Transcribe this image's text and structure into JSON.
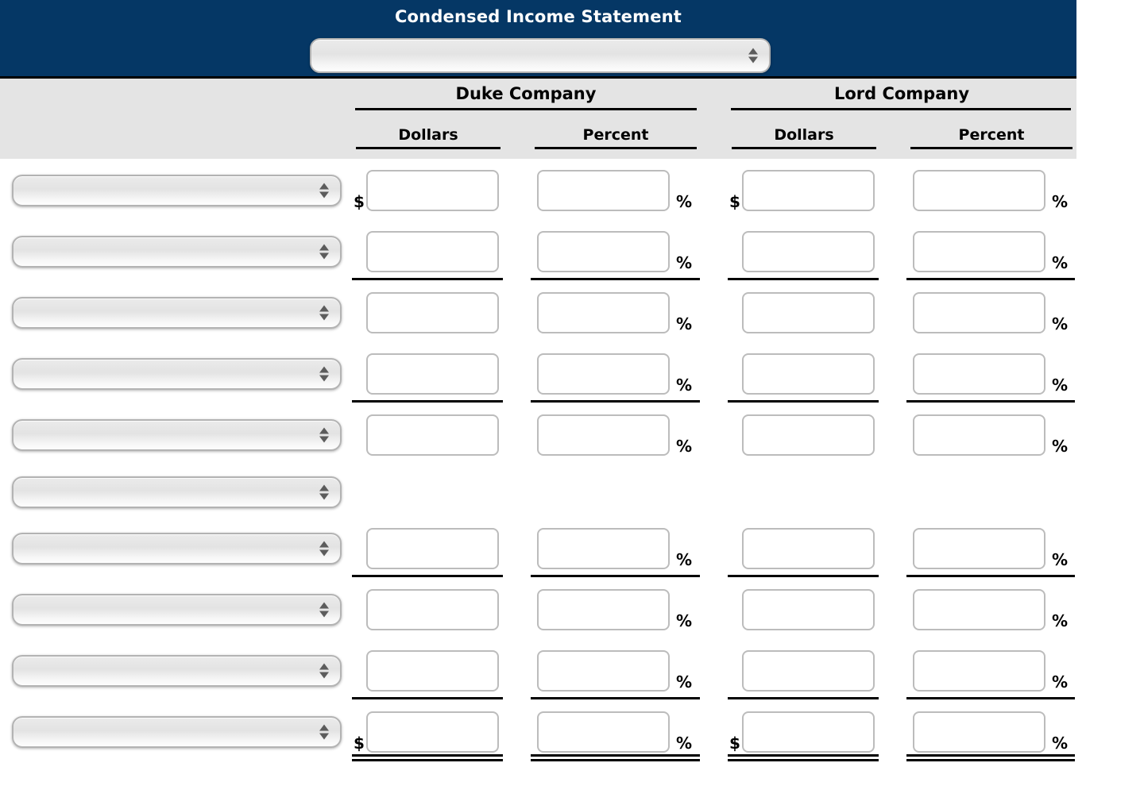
{
  "title": "Condensed Income Statement",
  "statement_select": {
    "value": ""
  },
  "symbols": {
    "dollar": "$",
    "percent": "%"
  },
  "table": {
    "companies": [
      {
        "name": "Duke Company",
        "columns": [
          "Dollars",
          "Percent"
        ]
      },
      {
        "name": "Lord Company",
        "columns": [
          "Dollars",
          "Percent"
        ]
      }
    ]
  },
  "rows": [
    {
      "id": 1,
      "account_select": "",
      "has_inputs": true,
      "show_dollar_sign": true,
      "rule_after": "none",
      "inputs": {
        "duke_dollars": "",
        "duke_percent": "",
        "lord_dollars": "",
        "lord_percent": ""
      }
    },
    {
      "id": 2,
      "account_select": "",
      "has_inputs": true,
      "show_dollar_sign": false,
      "rule_after": "single",
      "inputs": {
        "duke_dollars": "",
        "duke_percent": "",
        "lord_dollars": "",
        "lord_percent": ""
      }
    },
    {
      "id": 3,
      "account_select": "",
      "has_inputs": true,
      "show_dollar_sign": false,
      "rule_after": "none",
      "inputs": {
        "duke_dollars": "",
        "duke_percent": "",
        "lord_dollars": "",
        "lord_percent": ""
      }
    },
    {
      "id": 4,
      "account_select": "",
      "has_inputs": true,
      "show_dollar_sign": false,
      "rule_after": "single",
      "inputs": {
        "duke_dollars": "",
        "duke_percent": "",
        "lord_dollars": "",
        "lord_percent": ""
      }
    },
    {
      "id": 5,
      "account_select": "",
      "has_inputs": true,
      "show_dollar_sign": false,
      "rule_after": "none",
      "inputs": {
        "duke_dollars": "",
        "duke_percent": "",
        "lord_dollars": "",
        "lord_percent": ""
      }
    },
    {
      "id": 6,
      "account_select": "",
      "has_inputs": false,
      "show_dollar_sign": false,
      "rule_after": "none",
      "inputs": null
    },
    {
      "id": 7,
      "account_select": "",
      "has_inputs": true,
      "show_dollar_sign": false,
      "rule_after": "single",
      "inputs": {
        "duke_dollars": "",
        "duke_percent": "",
        "lord_dollars": "",
        "lord_percent": ""
      }
    },
    {
      "id": 8,
      "account_select": "",
      "has_inputs": true,
      "show_dollar_sign": false,
      "rule_after": "none",
      "inputs": {
        "duke_dollars": "",
        "duke_percent": "",
        "lord_dollars": "",
        "lord_percent": ""
      }
    },
    {
      "id": 9,
      "account_select": "",
      "has_inputs": true,
      "show_dollar_sign": false,
      "rule_after": "single",
      "inputs": {
        "duke_dollars": "",
        "duke_percent": "",
        "lord_dollars": "",
        "lord_percent": ""
      }
    },
    {
      "id": 10,
      "account_select": "",
      "has_inputs": true,
      "show_dollar_sign": true,
      "rule_after": "double",
      "inputs": {
        "duke_dollars": "",
        "duke_percent": "",
        "lord_dollars": "",
        "lord_percent": ""
      }
    }
  ]
}
